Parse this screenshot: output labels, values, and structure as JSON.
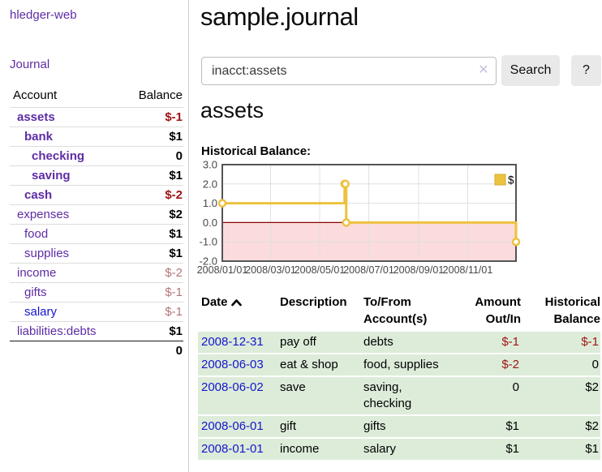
{
  "brand": {
    "label": "hledger-web"
  },
  "nav": {
    "journal": "Journal"
  },
  "sidebar": {
    "account_header": "Account",
    "balance_header": "Balance",
    "accounts": [
      {
        "name": "assets",
        "level": 1,
        "balance": "$-1",
        "emph": true,
        "neg": "strong",
        "link": "purple"
      },
      {
        "name": "bank",
        "level": 2,
        "balance": "$1",
        "emph": true,
        "neg": "none",
        "link": "purple"
      },
      {
        "name": "checking",
        "level": 3,
        "balance": "0",
        "emph": true,
        "neg": "none",
        "link": "purple"
      },
      {
        "name": "saving",
        "level": 3,
        "balance": "$1",
        "emph": true,
        "neg": "none",
        "link": "purple"
      },
      {
        "name": "cash",
        "level": 2,
        "balance": "$-2",
        "emph": true,
        "neg": "strong",
        "link": "purple"
      },
      {
        "name": "expenses",
        "level": 1,
        "balance": "$2",
        "emph": false,
        "neg": "none",
        "link": "purple"
      },
      {
        "name": "food",
        "level": 2,
        "balance": "$1",
        "emph": false,
        "neg": "none",
        "link": "purple"
      },
      {
        "name": "supplies",
        "level": 2,
        "balance": "$1",
        "emph": false,
        "neg": "none",
        "link": "purple"
      },
      {
        "name": "income",
        "level": 1,
        "balance": "$-2",
        "emph": false,
        "neg": "weak",
        "link": "purple"
      },
      {
        "name": "gifts",
        "level": 2,
        "balance": "$-1",
        "emph": false,
        "neg": "weak",
        "link": "purple"
      },
      {
        "name": "salary",
        "level": 2,
        "balance": "$-1",
        "emph": false,
        "neg": "weak",
        "link": "blue"
      },
      {
        "name": "liabilities:debts",
        "level": 1,
        "balance": "$1",
        "emph": false,
        "neg": "none",
        "link": "purple"
      }
    ],
    "total": "0"
  },
  "main": {
    "title": "sample.journal",
    "search": {
      "value": "inacct:assets",
      "clear_icon": "✕",
      "search_button": "Search",
      "help_button": "?"
    },
    "heading": "assets",
    "chart_label": "Historical Balance:"
  },
  "chart_data": {
    "type": "line",
    "step": true,
    "title": "Historical Balance:",
    "series": [
      {
        "name": "$",
        "color": "#edc240",
        "points": [
          [
            "2008-01-01",
            1
          ],
          [
            "2008-06-01",
            2
          ],
          [
            "2008-06-02",
            2
          ],
          [
            "2008-06-03",
            0
          ],
          [
            "2008-12-31",
            -1
          ]
        ]
      }
    ],
    "x_start": "2008-01-01",
    "x_end": "2008-12-31",
    "x_tick_labels": [
      "2008/01/01",
      "2008/03/01",
      "2008/05/01",
      "2008/07/01",
      "2008/09/01",
      "2008/11/01"
    ],
    "y_ticks": [
      3.0,
      2.0,
      1.0,
      0.0,
      -1.0,
      -2.0
    ],
    "ylim": [
      -2,
      3
    ],
    "legend": {
      "label": "$",
      "position": "top-right"
    },
    "grid": true,
    "colors": {
      "negative_region": "#fbdbdb",
      "zero_line": "#8b0000",
      "border": "#545454",
      "grid": "#e0e0e0",
      "tick_text": "#474747"
    }
  },
  "register": {
    "headers": {
      "date": "Date",
      "description": "Description",
      "tofrom": "To/From Account(s)",
      "amount": "Amount Out/In",
      "balance": "Historical Balance"
    },
    "rows": [
      {
        "date": "2008-12-31",
        "description": "pay off",
        "accounts": "debts",
        "amount": "$-1",
        "amount_neg": true,
        "balance": "$-1",
        "balance_neg": true
      },
      {
        "date": "2008-06-03",
        "description": "eat & shop",
        "accounts": "food, supplies",
        "amount": "$-2",
        "amount_neg": true,
        "balance": "0",
        "balance_neg": false
      },
      {
        "date": "2008-06-02",
        "description": "save",
        "accounts": "saving, checking",
        "amount": "0",
        "amount_neg": false,
        "balance": "$2",
        "balance_neg": false
      },
      {
        "date": "2008-06-01",
        "description": "gift",
        "accounts": "gifts",
        "amount": "$1",
        "amount_neg": false,
        "balance": "$2",
        "balance_neg": false
      },
      {
        "date": "2008-01-01",
        "description": "income",
        "accounts": "salary",
        "amount": "$1",
        "amount_neg": false,
        "balance": "$1",
        "balance_neg": false
      }
    ]
  }
}
